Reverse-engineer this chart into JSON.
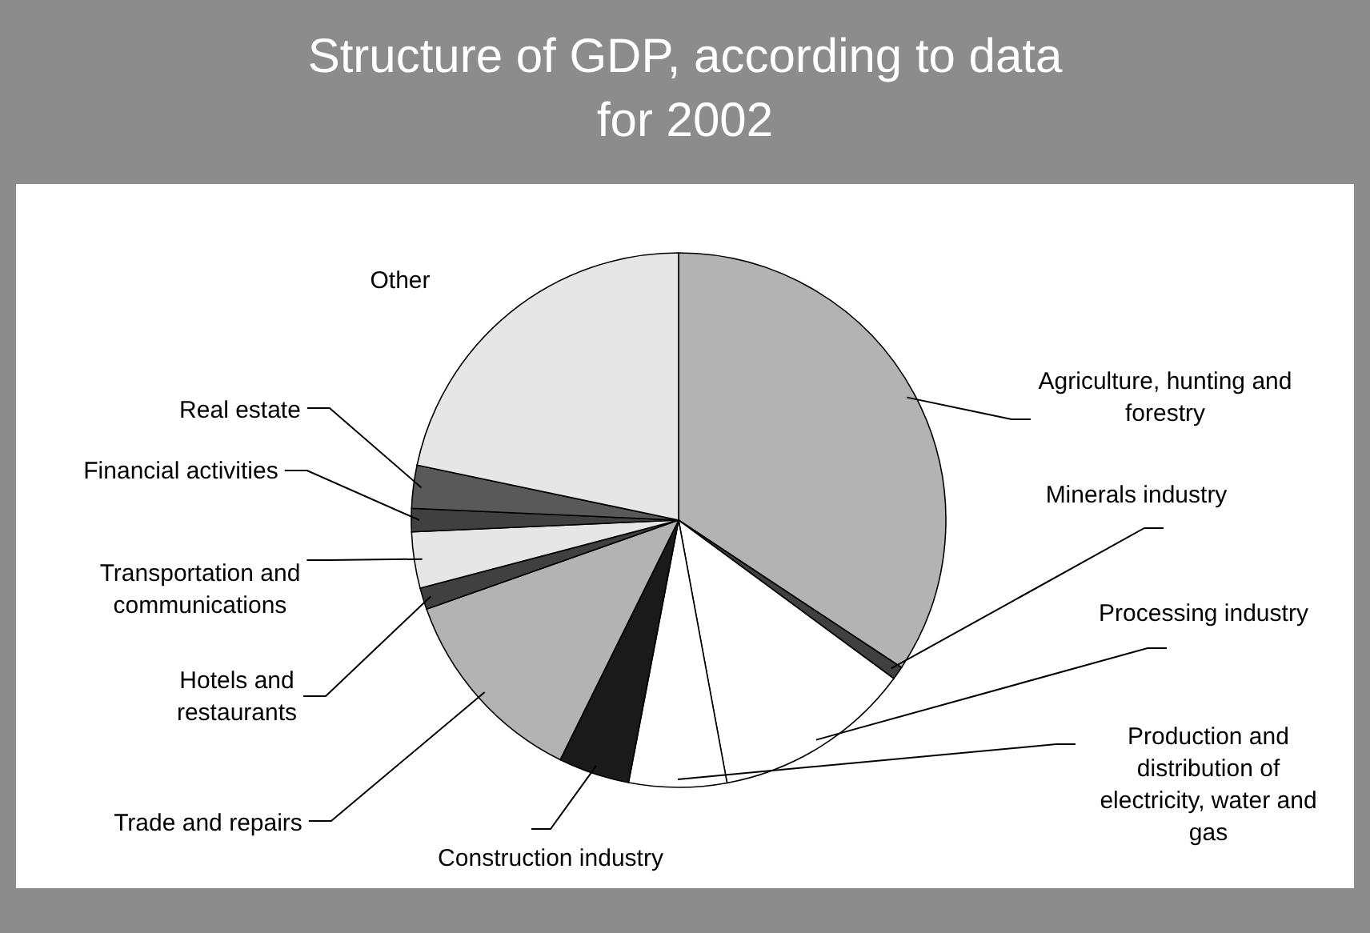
{
  "chart_data": {
    "type": "pie",
    "title": "Structure of GDP, according to data for 2002",
    "categories": [
      "Agriculture, hunting and forestry",
      "Minerals industry",
      "Processing industry",
      "Production and distribution of electricity, water and gas",
      "Construction industry",
      "Trade and repairs",
      "Hotels and restaurants",
      "Transportation and communications",
      "Financial activities",
      "Real estate",
      "Other"
    ],
    "values": [
      34.3,
      0.8,
      12.0,
      5.9,
      4.3,
      12.3,
      1.3,
      3.4,
      1.4,
      2.6,
      21.7
    ],
    "colors": [
      "#b3b3b3",
      "#404040",
      "#ffffff",
      "#ffffff",
      "#1a1a1a",
      "#b3b3b3",
      "#404040",
      "#e6e6e6",
      "#404040",
      "#595959",
      "#e6e6e6"
    ]
  }
}
